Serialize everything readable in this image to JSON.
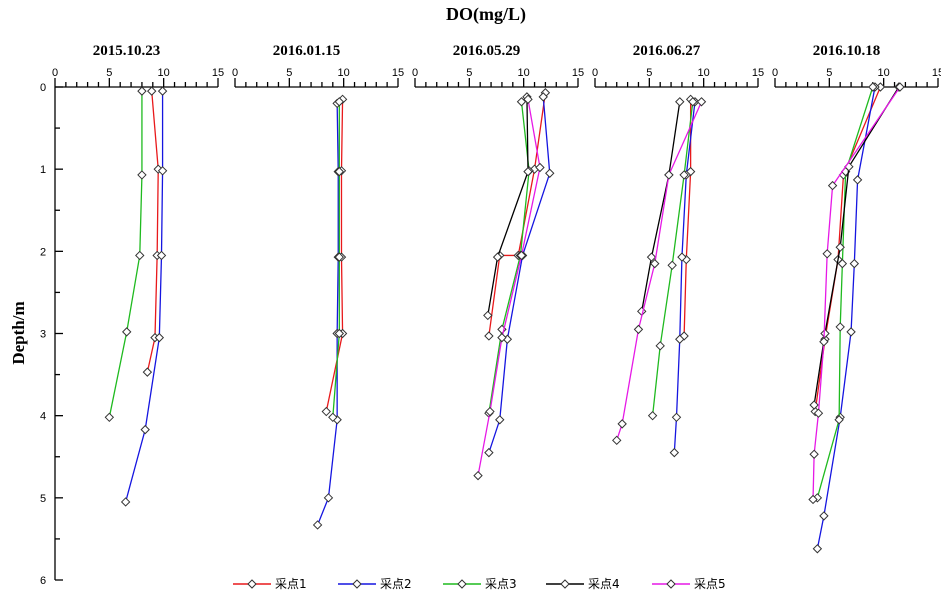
{
  "chart_data": {
    "type": "line",
    "title": "DO(mg/L)",
    "ylabel": "Depth/m",
    "xlim": [
      0,
      15
    ],
    "ylim": [
      0,
      6
    ],
    "xticks": [
      "0",
      "5",
      "10",
      "15"
    ],
    "yticks": [
      "0",
      "1",
      "2",
      "3",
      "4",
      "5",
      "6"
    ],
    "legend_position": "bottom",
    "series_names": [
      "采点1",
      "采点2",
      "采点3",
      "采点4",
      "采点5"
    ],
    "series_colors": [
      "#e8191b",
      "#1515e0",
      "#1fba1f",
      "#000000",
      "#e619e6"
    ],
    "panels": [
      {
        "title": "2015.10.23",
        "series": [
          {
            "name": "采点1",
            "points": [
              [
                8.9,
                0.05
              ],
              [
                9.5,
                1.0
              ],
              [
                9.4,
                2.05
              ],
              [
                9.2,
                3.05
              ],
              [
                8.5,
                3.47
              ]
            ]
          },
          {
            "name": "采点2",
            "points": [
              [
                9.9,
                0.05
              ],
              [
                9.9,
                1.02
              ],
              [
                9.8,
                2.05
              ],
              [
                9.6,
                3.05
              ],
              [
                8.3,
                4.17
              ],
              [
                6.5,
                5.05
              ]
            ]
          },
          {
            "name": "采点3",
            "points": [
              [
                8.0,
                0.05
              ],
              [
                8.0,
                1.07
              ],
              [
                7.8,
                2.05
              ],
              [
                6.6,
                2.98
              ],
              [
                5.0,
                4.02
              ]
            ]
          }
        ]
      },
      {
        "title": "2016.01.15",
        "series": [
          {
            "name": "采点1",
            "points": [
              [
                9.9,
                0.15
              ],
              [
                9.8,
                1.02
              ],
              [
                9.8,
                2.07
              ],
              [
                9.9,
                3.0
              ],
              [
                8.4,
                3.95
              ]
            ]
          },
          {
            "name": "采点2",
            "points": [
              [
                9.4,
                0.2
              ],
              [
                9.5,
                1.03
              ],
              [
                9.5,
                2.07
              ],
              [
                9.4,
                3.0
              ],
              [
                9.4,
                4.05
              ],
              [
                8.6,
                5.0
              ],
              [
                7.6,
                5.33
              ]
            ]
          },
          {
            "name": "采点3",
            "points": [
              [
                9.6,
                0.18
              ],
              [
                9.6,
                1.03
              ],
              [
                9.6,
                2.07
              ],
              [
                9.6,
                3.0
              ],
              [
                9.0,
                4.02
              ]
            ]
          }
        ]
      },
      {
        "title": "2016.05.29",
        "series": [
          {
            "name": "采点1",
            "points": [
              [
                12.0,
                0.07
              ],
              [
                11.0,
                1.0
              ],
              [
                9.5,
                2.05
              ],
              [
                7.8,
                2.05
              ],
              [
                6.8,
                3.03
              ]
            ]
          },
          {
            "name": "采点2",
            "points": [
              [
                11.8,
                0.12
              ],
              [
                12.4,
                1.05
              ],
              [
                9.9,
                2.05
              ],
              [
                8.5,
                3.07
              ],
              [
                7.8,
                4.05
              ],
              [
                6.8,
                4.45
              ]
            ]
          },
          {
            "name": "采点3",
            "points": [
              [
                9.8,
                0.18
              ],
              [
                10.5,
                1.02
              ],
              [
                9.7,
                2.05
              ],
              [
                8.0,
                2.95
              ],
              [
                6.8,
                3.97
              ]
            ]
          },
          {
            "name": "采点4",
            "points": [
              [
                10.3,
                0.12
              ],
              [
                10.4,
                1.03
              ],
              [
                7.6,
                2.07
              ],
              [
                6.7,
                2.78
              ]
            ]
          },
          {
            "name": "采点5",
            "points": [
              [
                10.4,
                0.15
              ],
              [
                11.5,
                0.98
              ],
              [
                9.8,
                2.05
              ],
              [
                8.0,
                3.05
              ],
              [
                6.9,
                3.95
              ],
              [
                5.8,
                4.73
              ]
            ]
          }
        ]
      },
      {
        "title": "2016.06.27",
        "series": [
          {
            "name": "采点1",
            "points": [
              [
                8.8,
                0.15
              ],
              [
                8.8,
                1.03
              ],
              [
                8.4,
                2.1
              ],
              [
                8.2,
                3.03
              ]
            ]
          },
          {
            "name": "采点2",
            "points": [
              [
                9.2,
                0.18
              ],
              [
                8.4,
                1.07
              ],
              [
                8.0,
                2.07
              ],
              [
                7.8,
                3.07
              ],
              [
                7.5,
                4.02
              ],
              [
                7.3,
                4.45
              ]
            ]
          },
          {
            "name": "采点3",
            "points": [
              [
                9.0,
                0.18
              ],
              [
                8.2,
                1.07
              ],
              [
                7.1,
                2.17
              ],
              [
                6.0,
                3.15
              ],
              [
                5.3,
                4.0
              ]
            ]
          },
          {
            "name": "采点4",
            "points": [
              [
                7.8,
                0.18
              ],
              [
                6.8,
                1.07
              ],
              [
                5.2,
                2.07
              ],
              [
                4.3,
                2.73
              ]
            ]
          },
          {
            "name": "采点5",
            "points": [
              [
                9.8,
                0.18
              ],
              [
                6.8,
                1.07
              ],
              [
                5.5,
                2.15
              ],
              [
                4.0,
                2.95
              ],
              [
                2.5,
                4.1
              ],
              [
                2.0,
                4.3
              ]
            ]
          }
        ]
      },
      {
        "title": "2016.10.18",
        "series": [
          {
            "name": "采点1",
            "points": [
              [
                9.7,
                0.0
              ],
              [
                6.3,
                1.07
              ],
              [
                5.8,
                2.1
              ],
              [
                4.6,
                3.07
              ],
              [
                3.7,
                3.95
              ]
            ]
          },
          {
            "name": "采点2",
            "points": [
              [
                9.2,
                0.0
              ],
              [
                7.6,
                1.13
              ],
              [
                7.3,
                2.15
              ],
              [
                7.0,
                2.98
              ],
              [
                6.0,
                4.02
              ],
              [
                4.5,
                5.22
              ],
              [
                3.9,
                5.62
              ]
            ]
          },
          {
            "name": "采点3",
            "points": [
              [
                9.0,
                0.0
              ],
              [
                6.5,
                1.03
              ],
              [
                6.2,
                2.15
              ],
              [
                6.0,
                2.92
              ],
              [
                5.9,
                4.05
              ],
              [
                3.9,
                5.0
              ]
            ]
          },
          {
            "name": "采点4",
            "points": [
              [
                11.4,
                0.0
              ],
              [
                6.8,
                0.97
              ],
              [
                6.0,
                1.95
              ],
              [
                4.6,
                3.0
              ],
              [
                3.6,
                3.87
              ]
            ]
          },
          {
            "name": "采点5",
            "points": [
              [
                11.5,
                0.0
              ],
              [
                5.3,
                1.2
              ],
              [
                4.8,
                2.03
              ],
              [
                4.5,
                3.1
              ],
              [
                4.0,
                3.97
              ],
              [
                3.6,
                4.47
              ],
              [
                3.5,
                5.02
              ]
            ]
          }
        ]
      }
    ]
  }
}
